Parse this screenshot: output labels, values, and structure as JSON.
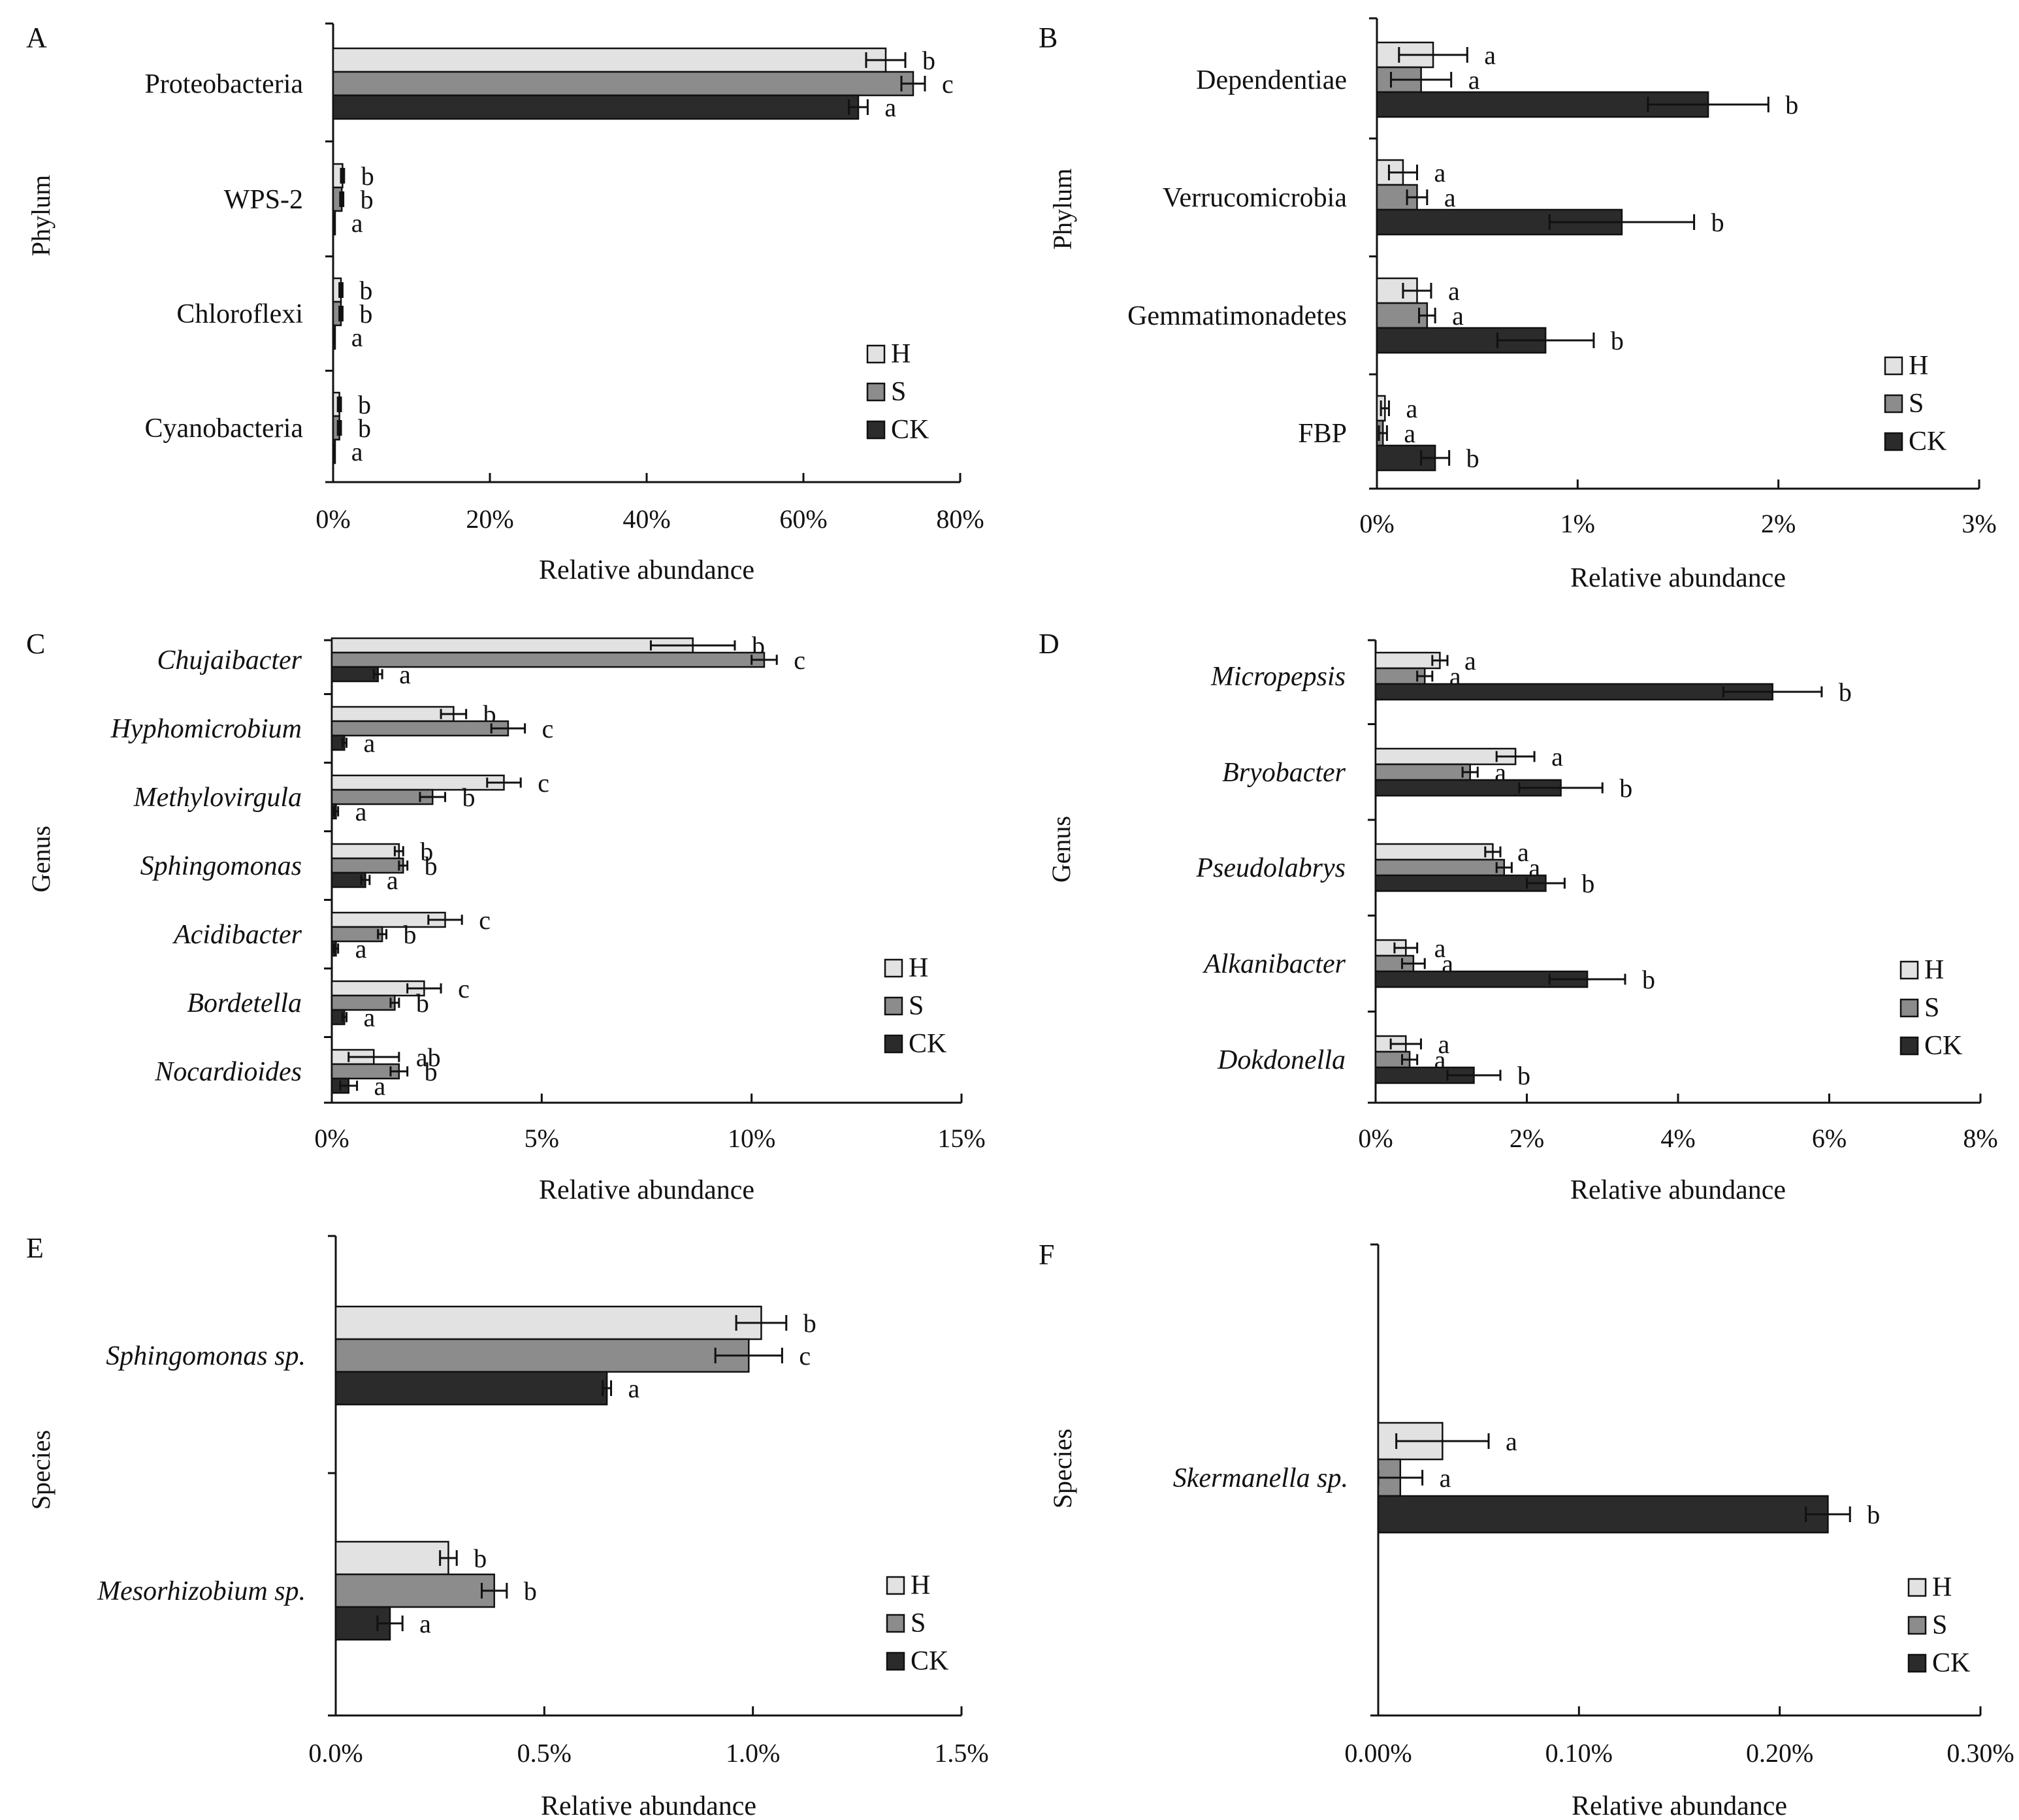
{
  "figure": {
    "colors": {
      "H": "#e2e2e2",
      "S": "#8c8c8c",
      "CK": "#2b2b2b"
    },
    "legend": [
      "H",
      "S",
      "CK"
    ]
  },
  "chart_data": [
    {
      "panel": "A",
      "type": "bar",
      "orientation": "horizontal",
      "ylabel": "Phylum",
      "xlabel": "Relative abundance",
      "xlim": [
        0,
        80
      ],
      "xticks": [
        "0%",
        "20%",
        "40%",
        "60%",
        "80%"
      ],
      "legend_position": "bottom-right",
      "categories": [
        "Proteobacteria",
        "WPS-2",
        "Chloroflexi",
        "Cyanobacteria"
      ],
      "italic": false,
      "series": [
        {
          "name": "H",
          "values": [
            70.5,
            1.2,
            1.0,
            0.8
          ],
          "errors": [
            2.5,
            0.2,
            0.2,
            0.2
          ],
          "letters": [
            "b",
            "b",
            "b",
            "b"
          ]
        },
        {
          "name": "S",
          "values": [
            74.0,
            1.1,
            1.0,
            0.8
          ],
          "errors": [
            1.5,
            0.2,
            0.2,
            0.2
          ],
          "letters": [
            "c",
            "b",
            "b",
            "b"
          ]
        },
        {
          "name": "CK",
          "values": [
            67.0,
            0.1,
            0.1,
            0.1
          ],
          "errors": [
            1.2,
            0.05,
            0.05,
            0.05
          ],
          "letters": [
            "a",
            "a",
            "a",
            "a"
          ]
        }
      ]
    },
    {
      "panel": "B",
      "type": "bar",
      "orientation": "horizontal",
      "ylabel": "Phylum",
      "xlabel": "Relative abundance",
      "xlim": [
        0,
        3
      ],
      "xticks": [
        "0%",
        "1%",
        "2%",
        "3%"
      ],
      "legend_position": "bottom-right",
      "categories": [
        "Dependentiae",
        "Verrucomicrobia",
        "Gemmatimonadetes",
        "FBP"
      ],
      "italic": false,
      "series": [
        {
          "name": "H",
          "values": [
            0.28,
            0.13,
            0.2,
            0.04
          ],
          "errors": [
            0.17,
            0.07,
            0.07,
            0.02
          ],
          "letters": [
            "a",
            "a",
            "a",
            "a"
          ]
        },
        {
          "name": "S",
          "values": [
            0.22,
            0.2,
            0.25,
            0.03
          ],
          "errors": [
            0.15,
            0.05,
            0.04,
            0.02
          ],
          "letters": [
            "a",
            "a",
            "a",
            "a"
          ]
        },
        {
          "name": "CK",
          "values": [
            1.65,
            1.22,
            0.84,
            0.29
          ],
          "errors": [
            0.3,
            0.36,
            0.24,
            0.07
          ],
          "letters": [
            "b",
            "b",
            "b",
            "b"
          ]
        }
      ]
    },
    {
      "panel": "C",
      "type": "bar",
      "orientation": "horizontal",
      "ylabel": "Genus",
      "xlabel": "Relative abundance",
      "xlim": [
        0,
        15
      ],
      "xticks": [
        "0%",
        "5%",
        "10%",
        "15%"
      ],
      "legend_position": "bottom-right",
      "categories": [
        "Chujaibacter",
        "Hyphomicrobium",
        "Methylovirgula",
        "Sphingomonas",
        "Acidibacter",
        "Bordetella",
        "Nocardioides"
      ],
      "italic": true,
      "series": [
        {
          "name": "H",
          "values": [
            8.6,
            2.9,
            4.1,
            1.6,
            2.7,
            2.2,
            1.0
          ],
          "errors": [
            1.0,
            0.3,
            0.4,
            0.1,
            0.4,
            0.4,
            0.6
          ],
          "letters": [
            "b",
            "b",
            "c",
            "b",
            "c",
            "c",
            "ab"
          ]
        },
        {
          "name": "S",
          "values": [
            10.3,
            4.2,
            2.4,
            1.7,
            1.2,
            1.5,
            1.6
          ],
          "errors": [
            0.3,
            0.4,
            0.3,
            0.1,
            0.1,
            0.1,
            0.2
          ],
          "letters": [
            "c",
            "c",
            "b",
            "b",
            "b",
            "b",
            "b"
          ]
        },
        {
          "name": "CK",
          "values": [
            1.1,
            0.3,
            0.1,
            0.8,
            0.1,
            0.3,
            0.4
          ],
          "errors": [
            0.1,
            0.05,
            0.05,
            0.1,
            0.05,
            0.05,
            0.2
          ],
          "letters": [
            "a",
            "a",
            "a",
            "a",
            "a",
            "a",
            "a"
          ]
        }
      ]
    },
    {
      "panel": "D",
      "type": "bar",
      "orientation": "horizontal",
      "ylabel": "Genus",
      "xlabel": "Relative abundance",
      "xlim": [
        0,
        8
      ],
      "xticks": [
        "0%",
        "2%",
        "4%",
        "6%",
        "8%"
      ],
      "legend_position": "bottom-right",
      "categories": [
        "Micropepsis",
        "Bryobacter",
        "Pseudolabrys",
        "Alkanibacter",
        "Dokdonella"
      ],
      "italic": true,
      "series": [
        {
          "name": "H",
          "values": [
            0.85,
            1.85,
            1.55,
            0.4,
            0.4
          ],
          "errors": [
            0.1,
            0.25,
            0.1,
            0.15,
            0.2
          ],
          "letters": [
            "a",
            "a",
            "a",
            "a",
            "a"
          ]
        },
        {
          "name": "S",
          "values": [
            0.65,
            1.25,
            1.7,
            0.5,
            0.45
          ],
          "errors": [
            0.1,
            0.1,
            0.1,
            0.15,
            0.1
          ],
          "letters": [
            "a",
            "a",
            "a",
            "a",
            "a"
          ]
        },
        {
          "name": "CK",
          "values": [
            5.25,
            2.45,
            2.25,
            2.8,
            1.3
          ],
          "errors": [
            0.65,
            0.55,
            0.25,
            0.5,
            0.35
          ],
          "letters": [
            "b",
            "b",
            "b",
            "b",
            "b"
          ]
        }
      ]
    },
    {
      "panel": "E",
      "type": "bar",
      "orientation": "horizontal",
      "ylabel": "Species",
      "xlabel": "Relative abundance",
      "xlim": [
        0,
        1.5
      ],
      "xticks": [
        "0.0%",
        "0.5%",
        "1.0%",
        "1.5%"
      ],
      "legend_position": "bottom-right",
      "categories": [
        "Sphingomonas sp.",
        "Mesorhizobium sp."
      ],
      "italic": true,
      "series": [
        {
          "name": "H",
          "values": [
            1.02,
            0.27
          ],
          "errors": [
            0.06,
            0.02
          ],
          "letters": [
            "b",
            "b"
          ]
        },
        {
          "name": "S",
          "values": [
            0.99,
            0.38
          ],
          "errors": [
            0.08,
            0.03
          ],
          "letters": [
            "c",
            "b"
          ]
        },
        {
          "name": "CK",
          "values": [
            0.65,
            0.13
          ],
          "errors": [
            0.01,
            0.03
          ],
          "letters": [
            "a",
            "a"
          ]
        }
      ]
    },
    {
      "panel": "F",
      "type": "bar",
      "orientation": "horizontal",
      "ylabel": "Species",
      "xlabel": "Relative abundance",
      "xlim": [
        0,
        0.3
      ],
      "xticks": [
        "0.00%",
        "0.10%",
        "0.20%",
        "0.30%"
      ],
      "legend_position": "bottom-right",
      "categories": [
        "Skermanella sp."
      ],
      "italic": true,
      "series": [
        {
          "name": "H",
          "values": [
            0.032
          ],
          "errors": [
            0.023
          ],
          "letters": [
            "a"
          ]
        },
        {
          "name": "S",
          "values": [
            0.011
          ],
          "errors": [
            0.011
          ],
          "letters": [
            "a"
          ]
        },
        {
          "name": "CK",
          "values": [
            0.224
          ],
          "errors": [
            0.011
          ],
          "letters": [
            "b"
          ]
        }
      ]
    }
  ]
}
